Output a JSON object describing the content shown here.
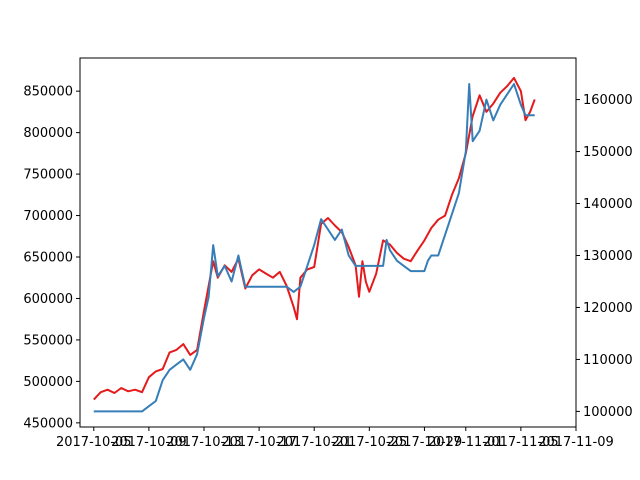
{
  "chart_data": {
    "type": "line",
    "title": "",
    "xlabel": "",
    "ylabel_left": "",
    "ylabel_right": "",
    "grid": false,
    "legend": "none",
    "x_range": [
      "2017-10-04",
      "2017-11-09"
    ],
    "x_ticks": [
      "2017-10-05",
      "2017-10-09",
      "2017-10-13",
      "2017-10-17",
      "2017-10-21",
      "2017-10-25",
      "2017-10-29",
      "2017-11-01",
      "2017-11-05",
      "2017-11-09"
    ],
    "y_left": {
      "range": [
        445000,
        890000
      ],
      "ticks": [
        "450000",
        "500000",
        "550000",
        "600000",
        "650000",
        "700000",
        "750000",
        "800000",
        "850000"
      ]
    },
    "y_right": {
      "range": [
        97000,
        168000
      ],
      "ticks": [
        "100000",
        "110000",
        "120000",
        "130000",
        "140000",
        "150000",
        "160000"
      ]
    },
    "series": [
      {
        "axis": "left",
        "color": "#e41a1c",
        "points": [
          [
            "2017-10-05T00:00",
            478000
          ],
          [
            "2017-10-05T12:00",
            487000
          ],
          [
            "2017-10-06T00:00",
            490000
          ],
          [
            "2017-10-06T12:00",
            486000
          ],
          [
            "2017-10-07T00:00",
            492000
          ],
          [
            "2017-10-07T12:00",
            488000
          ],
          [
            "2017-10-08T00:00",
            490000
          ],
          [
            "2017-10-08T12:00",
            487000
          ],
          [
            "2017-10-09T00:00",
            505000
          ],
          [
            "2017-10-09T12:00",
            512000
          ],
          [
            "2017-10-10T00:00",
            515000
          ],
          [
            "2017-10-10T12:00",
            535000
          ],
          [
            "2017-10-11T00:00",
            538000
          ],
          [
            "2017-10-11T12:00",
            545000
          ],
          [
            "2017-10-12T00:00",
            532000
          ],
          [
            "2017-10-12T12:00",
            538000
          ],
          [
            "2017-10-13T00:00",
            585000
          ],
          [
            "2017-10-13T08:00",
            615000
          ],
          [
            "2017-10-13T16:00",
            645000
          ],
          [
            "2017-10-14T00:00",
            625000
          ],
          [
            "2017-10-14T12:00",
            640000
          ],
          [
            "2017-10-15T00:00",
            632000
          ],
          [
            "2017-10-15T12:00",
            648000
          ],
          [
            "2017-10-16T00:00",
            612000
          ],
          [
            "2017-10-16T12:00",
            628000
          ],
          [
            "2017-10-17T00:00",
            635000
          ],
          [
            "2017-10-17T12:00",
            630000
          ],
          [
            "2017-10-18T00:00",
            625000
          ],
          [
            "2017-10-18T12:00",
            632000
          ],
          [
            "2017-10-19T00:00",
            615000
          ],
          [
            "2017-10-19T12:00",
            590000
          ],
          [
            "2017-10-19T18:00",
            575000
          ],
          [
            "2017-10-20T00:00",
            625000
          ],
          [
            "2017-10-20T12:00",
            635000
          ],
          [
            "2017-10-21T00:00",
            638000
          ],
          [
            "2017-10-21T12:00",
            690000
          ],
          [
            "2017-10-22T00:00",
            697000
          ],
          [
            "2017-10-22T12:00",
            688000
          ],
          [
            "2017-10-23T00:00",
            680000
          ],
          [
            "2017-10-23T12:00",
            662000
          ],
          [
            "2017-10-24T00:00",
            640000
          ],
          [
            "2017-10-24T06:00",
            602000
          ],
          [
            "2017-10-24T12:00",
            645000
          ],
          [
            "2017-10-24T18:00",
            620000
          ],
          [
            "2017-10-25T00:00",
            608000
          ],
          [
            "2017-10-25T12:00",
            630000
          ],
          [
            "2017-10-26T00:00",
            670000
          ],
          [
            "2017-10-26T12:00",
            665000
          ],
          [
            "2017-10-27T00:00",
            655000
          ],
          [
            "2017-10-27T12:00",
            648000
          ],
          [
            "2017-10-28T00:00",
            645000
          ],
          [
            "2017-10-28T12:00",
            658000
          ],
          [
            "2017-10-29T00:00",
            670000
          ],
          [
            "2017-10-29T12:00",
            685000
          ],
          [
            "2017-10-30T00:00",
            695000
          ],
          [
            "2017-10-30T12:00",
            700000
          ],
          [
            "2017-10-31T00:00",
            725000
          ],
          [
            "2017-10-31T12:00",
            745000
          ],
          [
            "2017-11-01T00:00",
            775000
          ],
          [
            "2017-11-01T12:00",
            820000
          ],
          [
            "2017-11-02T00:00",
            845000
          ],
          [
            "2017-11-02T12:00",
            825000
          ],
          [
            "2017-11-03T00:00",
            835000
          ],
          [
            "2017-11-03T12:00",
            848000
          ],
          [
            "2017-11-04T00:00",
            856000
          ],
          [
            "2017-11-04T12:00",
            866000
          ],
          [
            "2017-11-05T00:00",
            850000
          ],
          [
            "2017-11-05T08:00",
            815000
          ],
          [
            "2017-11-05T16:00",
            825000
          ],
          [
            "2017-11-06T00:00",
            840000
          ]
        ]
      },
      {
        "axis": "right",
        "color": "#377eb8",
        "points": [
          [
            "2017-10-05T00:00",
            100000
          ],
          [
            "2017-10-05T12:00",
            100000
          ],
          [
            "2017-10-07T00:00",
            100000
          ],
          [
            "2017-10-08T12:00",
            100000
          ],
          [
            "2017-10-09T00:00",
            101000
          ],
          [
            "2017-10-09T12:00",
            102000
          ],
          [
            "2017-10-10T00:00",
            106000
          ],
          [
            "2017-10-10T12:00",
            108000
          ],
          [
            "2017-10-11T00:00",
            109000
          ],
          [
            "2017-10-11T12:00",
            110000
          ],
          [
            "2017-10-12T00:00",
            108000
          ],
          [
            "2017-10-12T12:00",
            111000
          ],
          [
            "2017-10-13T00:00",
            118000
          ],
          [
            "2017-10-13T08:00",
            122000
          ],
          [
            "2017-10-13T16:00",
            132000
          ],
          [
            "2017-10-14T00:00",
            126000
          ],
          [
            "2017-10-14T12:00",
            128000
          ],
          [
            "2017-10-15T00:00",
            125000
          ],
          [
            "2017-10-15T12:00",
            130000
          ],
          [
            "2017-10-16T00:00",
            124000
          ],
          [
            "2017-10-17T00:00",
            124000
          ],
          [
            "2017-10-18T00:00",
            124000
          ],
          [
            "2017-10-19T00:00",
            124000
          ],
          [
            "2017-10-19T12:00",
            123000
          ],
          [
            "2017-10-20T00:00",
            124000
          ],
          [
            "2017-10-20T12:00",
            128000
          ],
          [
            "2017-10-21T00:00",
            132000
          ],
          [
            "2017-10-21T12:00",
            137000
          ],
          [
            "2017-10-22T00:00",
            135000
          ],
          [
            "2017-10-22T12:00",
            133000
          ],
          [
            "2017-10-23T00:00",
            135000
          ],
          [
            "2017-10-23T12:00",
            130000
          ],
          [
            "2017-10-24T00:00",
            128000
          ],
          [
            "2017-10-25T00:00",
            128000
          ],
          [
            "2017-10-26T00:00",
            128000
          ],
          [
            "2017-10-26T06:00",
            133000
          ],
          [
            "2017-10-26T12:00",
            131000
          ],
          [
            "2017-10-27T00:00",
            129000
          ],
          [
            "2017-10-27T12:00",
            128000
          ],
          [
            "2017-10-28T00:00",
            127000
          ],
          [
            "2017-10-29T00:00",
            127000
          ],
          [
            "2017-10-29T06:00",
            129000
          ],
          [
            "2017-10-29T12:00",
            130000
          ],
          [
            "2017-10-30T00:00",
            130000
          ],
          [
            "2017-10-30T12:00",
            134000
          ],
          [
            "2017-10-31T00:00",
            138000
          ],
          [
            "2017-10-31T12:00",
            142000
          ],
          [
            "2017-11-01T00:00",
            150000
          ],
          [
            "2017-11-01T06:00",
            163000
          ],
          [
            "2017-11-01T12:00",
            152000
          ],
          [
            "2017-11-02T00:00",
            154000
          ],
          [
            "2017-11-02T12:00",
            160000
          ],
          [
            "2017-11-03T00:00",
            156000
          ],
          [
            "2017-11-03T12:00",
            159000
          ],
          [
            "2017-11-04T00:00",
            161000
          ],
          [
            "2017-11-04T12:00",
            163000
          ],
          [
            "2017-11-05T00:00",
            159000
          ],
          [
            "2017-11-05T08:00",
            157000
          ],
          [
            "2017-11-06T00:00",
            157000
          ]
        ]
      }
    ]
  }
}
